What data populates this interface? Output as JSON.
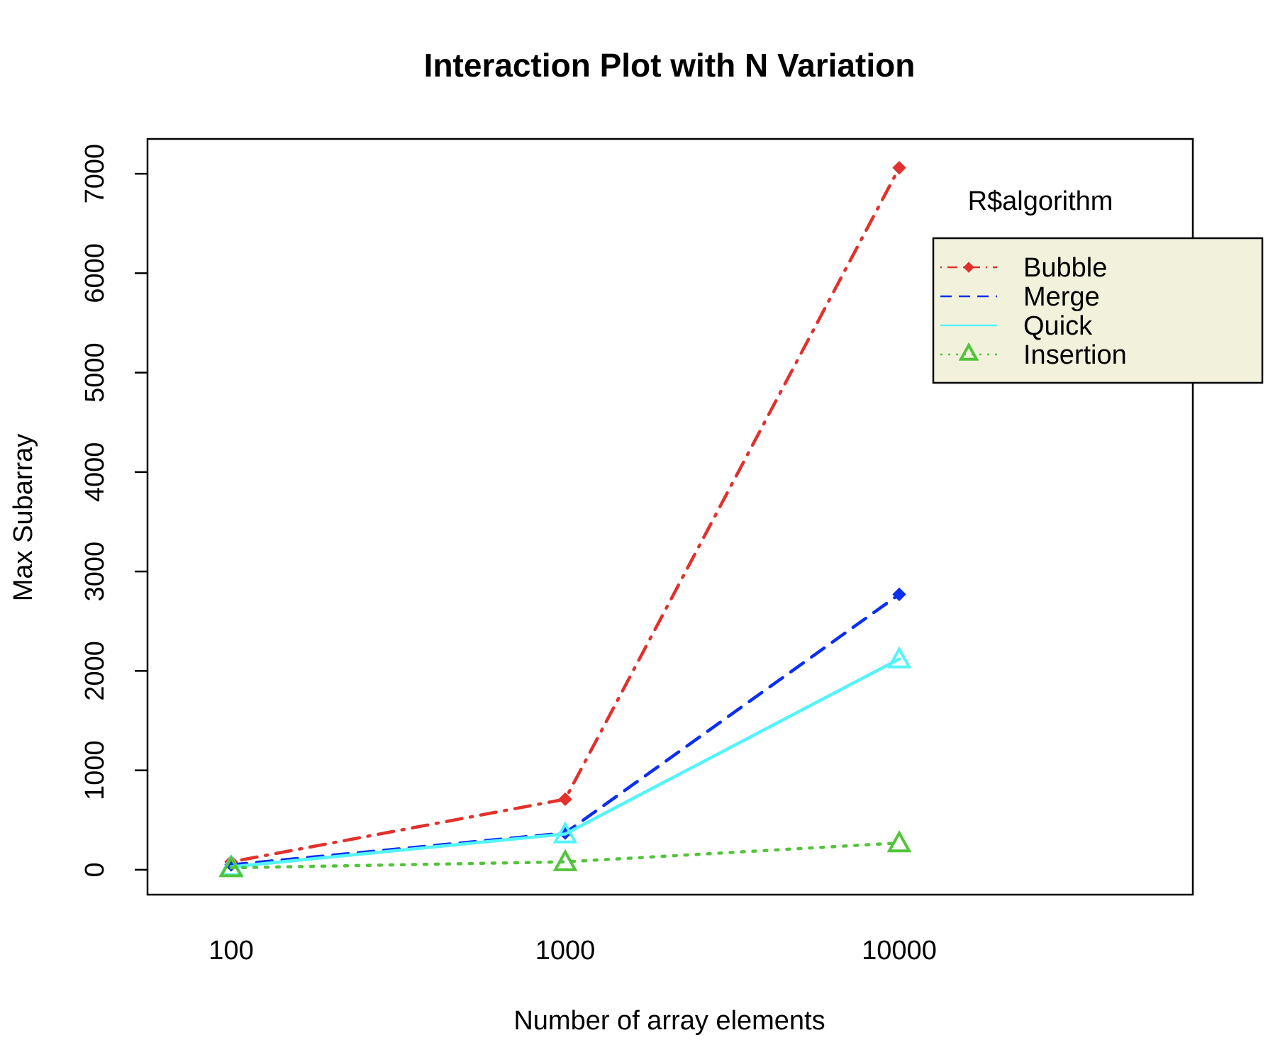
{
  "chart_data": {
    "type": "line",
    "title": "Interaction Plot with N Variation",
    "xlabel": "Number of array elements",
    "ylabel": "Max Subarray",
    "x_scale": "categorical",
    "categories": [
      "100",
      "1000",
      "10000"
    ],
    "ylim": [
      -250,
      7350
    ],
    "yticks": [
      0,
      1000,
      2000,
      3000,
      4000,
      5000,
      6000,
      7000
    ],
    "ytick_labels": [
      "0",
      "1000",
      "2000",
      "3000",
      "4000",
      "5000",
      "6000",
      "7000"
    ],
    "grid": false,
    "legend": {
      "title": "R$algorithm",
      "placement": "top-right",
      "background": "#f2f1dc"
    },
    "series": [
      {
        "name": "Bubble",
        "values": [
          80,
          710,
          7060
        ],
        "color": "#e2312c",
        "dash": "dotdash",
        "marker": "diamond"
      },
      {
        "name": "Merge",
        "values": [
          50,
          370,
          2770
        ],
        "color": "#0a2ff0",
        "dash": "dashed",
        "marker": "diamond"
      },
      {
        "name": "Quick",
        "values": [
          30,
          360,
          2120
        ],
        "color": "#55f3fa",
        "dash": "solid",
        "marker": "triangle"
      },
      {
        "name": "Insertion",
        "values": [
          20,
          80,
          270
        ],
        "color": "#52c43a",
        "dash": "dotted",
        "marker": "triangle"
      }
    ]
  }
}
